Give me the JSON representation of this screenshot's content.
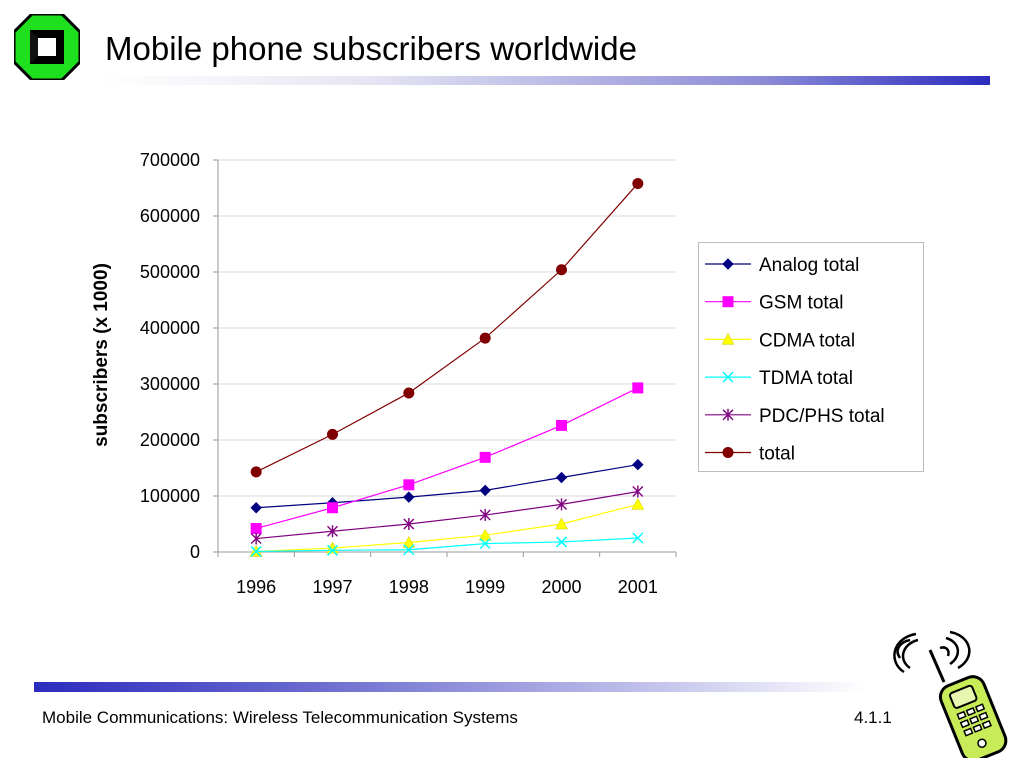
{
  "slide": {
    "title": "Mobile phone subscribers worldwide",
    "footer": "Mobile Communications: Wireless  Telecommunication Systems",
    "page_number": "4.1.1"
  },
  "icons": [
    "university-logo-icon",
    "mobile-phone-clipart-icon"
  ],
  "colors": {
    "accent_blue": "#2b2bbf",
    "logo_green": "#1fe01f",
    "grid": "#d9d9d9"
  },
  "chart_data": {
    "type": "line",
    "ylabel": "subscribers (x 1000)",
    "xlabel": "",
    "x": [
      "1996",
      "1997",
      "1998",
      "1999",
      "2000",
      "2001"
    ],
    "ylim": [
      0,
      700000
    ],
    "yticks": [
      "0",
      "100000",
      "200000",
      "300000",
      "400000",
      "500000",
      "600000",
      "700000"
    ],
    "grid": "horizontal",
    "legend_position": "right",
    "series": [
      {
        "name": "Analog total",
        "color": "#000080",
        "marker": "diamond",
        "values": [
          79000,
          88000,
          98000,
          110000,
          133000,
          156000
        ]
      },
      {
        "name": "GSM total",
        "color": "#ff00ff",
        "marker": "square",
        "values": [
          42000,
          79000,
          120000,
          169000,
          226000,
          293000
        ]
      },
      {
        "name": "CDMA total",
        "color": "#ffff00",
        "marker": "triangle",
        "values": [
          1000,
          7000,
          17000,
          30000,
          50000,
          85000
        ]
      },
      {
        "name": "TDMA total",
        "color": "#00ffff",
        "marker": "x",
        "values": [
          1000,
          3000,
          4000,
          15000,
          18000,
          25000
        ]
      },
      {
        "name": "PDC/PHS total",
        "color": "#800080",
        "marker": "star",
        "values": [
          24000,
          37000,
          50000,
          66000,
          85000,
          108000
        ]
      },
      {
        "name": "total",
        "color": "#800000",
        "marker": "circle",
        "values": [
          143000,
          210000,
          284000,
          382000,
          504000,
          658000
        ]
      }
    ]
  }
}
